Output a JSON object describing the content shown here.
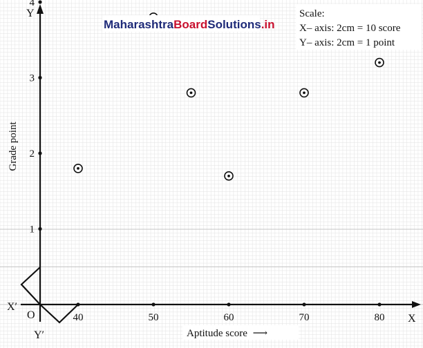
{
  "watermark": {
    "part1": "Maharashtra",
    "part2": "Board",
    "part3": "Solutions",
    "part4": ".in"
  },
  "colors": {
    "paper": "#ffffff",
    "grid_minor": "#e2e2e2",
    "grid_major": "#c4c4c4",
    "axis": "#111111",
    "wm_blue": "#1e2a78",
    "wm_red": "#c8102e"
  },
  "scale_box": {
    "title": "Scale:",
    "x_line": "X– axis: 2cm = 10 score",
    "y_line": "Y– axis: 2cm = 1 point"
  },
  "axis_letters": {
    "x": "X",
    "x_neg": "X′",
    "y": "Y",
    "y_neg": "Y′",
    "origin": "O"
  },
  "chart_data": {
    "type": "scatter",
    "xlabel": "Aptitude score",
    "xlabel_arrow": "⟶",
    "ylabel": "Grade point",
    "x_ticks": [
      "40",
      "50",
      "60",
      "70",
      "80"
    ],
    "y_ticks": [
      "1",
      "2",
      "3",
      "4"
    ],
    "points": [
      {
        "x": 40,
        "y": 1.8
      },
      {
        "x": 50,
        "y": 3.8
      },
      {
        "x": 55,
        "y": 2.8
      },
      {
        "x": 60,
        "y": 1.7
      },
      {
        "x": 70,
        "y": 2.8
      },
      {
        "x": 80,
        "y": 3.2
      }
    ],
    "axis_break": "kink between origin and 40 on the x-axis",
    "grid": true
  }
}
